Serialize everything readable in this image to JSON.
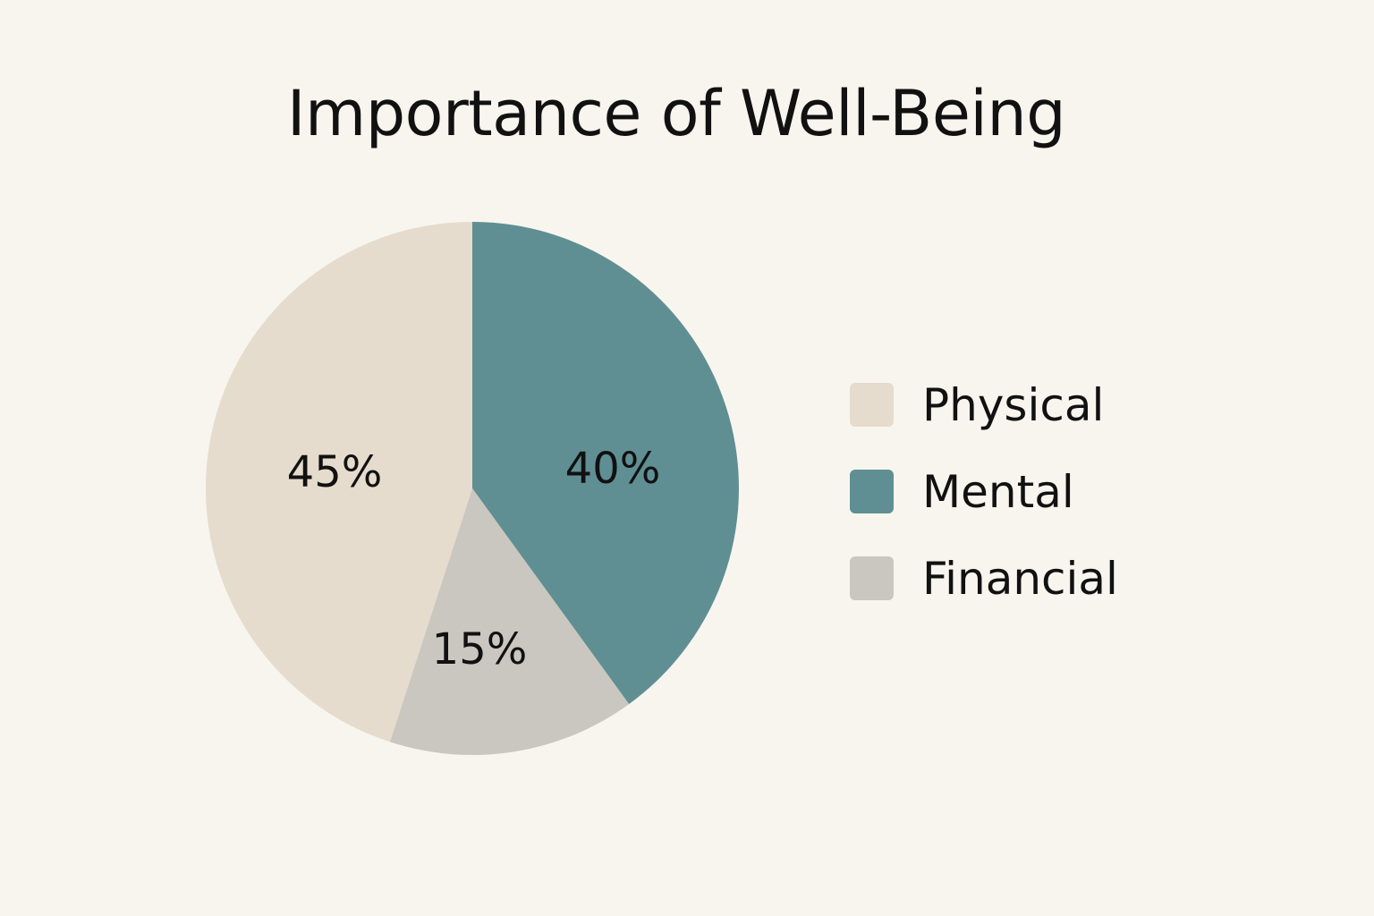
{
  "chart_data": {
    "type": "pie",
    "title": "Importance of Well-Being",
    "categories": [
      "Physical",
      "Mental",
      "Financial"
    ],
    "values": [
      45,
      40,
      15
    ],
    "value_labels": [
      "45%",
      "40%",
      "15%"
    ],
    "colors": [
      "#e5dccd",
      "#5f8f93",
      "#c9c7bf"
    ],
    "unit": "%",
    "legend_position": "right"
  }
}
